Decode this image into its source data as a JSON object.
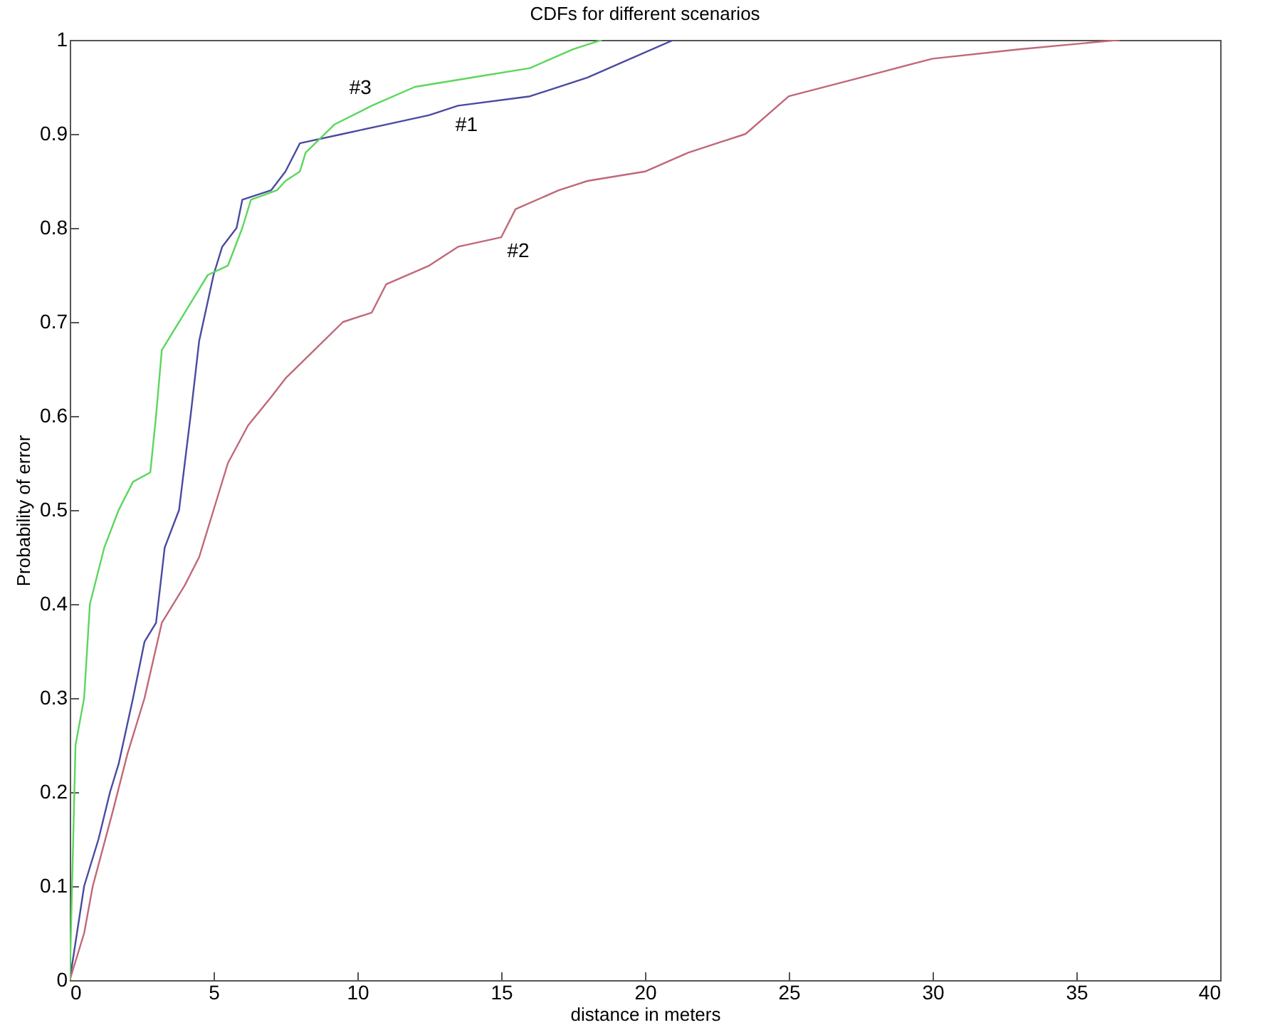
{
  "chart_data": {
    "type": "line",
    "title": "CDFs for different scenarios",
    "xlabel": "distance in meters",
    "ylabel": "Probability of error",
    "xlim": [
      0,
      40
    ],
    "xticks": [
      0,
      5,
      10,
      15,
      20,
      25,
      30,
      35,
      40
    ],
    "ylim": [
      0,
      1
    ],
    "yticks": [
      0,
      0.1,
      0.2,
      0.3,
      0.4,
      0.5,
      0.6,
      0.7,
      0.8,
      0.9,
      1
    ],
    "grid": false,
    "series": [
      {
        "color": "#4a4aa0",
        "x": [
          0,
          0.5,
          1,
          1.4,
          1.7,
          2.2,
          2.6,
          3,
          3.3,
          3.8,
          4.2,
          4.5,
          5,
          5.3,
          5.8,
          6,
          7,
          7.5,
          8,
          9.5,
          11,
          12.5,
          13.5,
          16,
          18,
          19.5,
          21
        ],
        "values": [
          0,
          0.1,
          0.15,
          0.2,
          0.23,
          0.3,
          0.36,
          0.38,
          0.46,
          0.5,
          0.6,
          0.68,
          0.75,
          0.78,
          0.8,
          0.83,
          0.84,
          0.86,
          0.89,
          0.9,
          0.91,
          0.92,
          0.93,
          0.94,
          0.96,
          0.98,
          1
        ]
      },
      {
        "color": "#c06878",
        "x": [
          0,
          0.5,
          0.8,
          1.5,
          2,
          2.6,
          3.2,
          4,
          4.5,
          5,
          5.5,
          6.2,
          7,
          7.5,
          8.5,
          9.5,
          10.5,
          11,
          12.5,
          13.5,
          15,
          15.5,
          17,
          18,
          20,
          21.5,
          23.5,
          25,
          27.5,
          30,
          33,
          36.5
        ],
        "values": [
          0,
          0.05,
          0.1,
          0.18,
          0.24,
          0.3,
          0.38,
          0.42,
          0.45,
          0.5,
          0.55,
          0.59,
          0.62,
          0.64,
          0.67,
          0.7,
          0.71,
          0.74,
          0.76,
          0.78,
          0.79,
          0.82,
          0.84,
          0.85,
          0.86,
          0.88,
          0.9,
          0.94,
          0.96,
          0.98,
          0.99,
          1
        ]
      },
      {
        "color": "#5cd65c",
        "x": [
          0,
          0.2,
          0.5,
          0.7,
          1.2,
          1.7,
          2.2,
          2.8,
          3,
          3.2,
          3.8,
          4.8,
          5.5,
          6,
          6.3,
          7.2,
          7.5,
          8,
          8.2,
          9.2,
          10.5,
          12,
          14,
          16,
          17.5,
          18.5
        ],
        "values": [
          0,
          0.25,
          0.3,
          0.4,
          0.46,
          0.5,
          0.53,
          0.54,
          0.6,
          0.67,
          0.7,
          0.75,
          0.76,
          0.8,
          0.83,
          0.84,
          0.85,
          0.86,
          0.88,
          0.91,
          0.93,
          0.95,
          0.96,
          0.97,
          0.99,
          1
        ]
      }
    ],
    "annotations": [
      {
        "text": "#3",
        "x": 10.5,
        "y": 0.93
      },
      {
        "text": "#1",
        "x": 13.5,
        "y": 0.93
      },
      {
        "text": "#2",
        "x": 15,
        "y": 0.79
      }
    ]
  }
}
